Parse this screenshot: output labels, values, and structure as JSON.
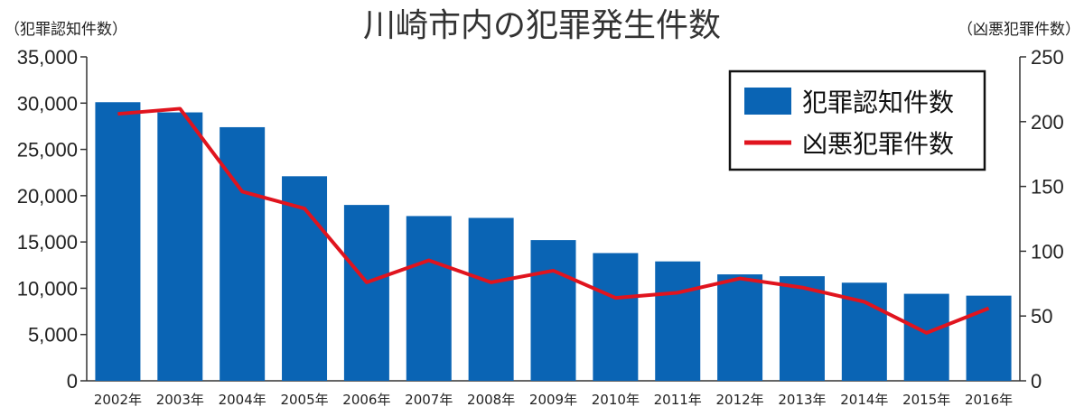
{
  "chart_data": {
    "type": "bar+line",
    "title": "川崎市内の犯罪発生件数",
    "ylabel_left": "（犯罪認知件数）",
    "ylabel_right": "（凶悪犯罪件数）",
    "categories": [
      "2002年",
      "2003年",
      "2004年",
      "2005年",
      "2006年",
      "2007年",
      "2008年",
      "2009年",
      "2010年",
      "2011年",
      "2012年",
      "2013年",
      "2014年",
      "2015年",
      "2016年"
    ],
    "series": [
      {
        "name": "犯罪認知件数",
        "type": "bar",
        "axis": "left",
        "color": "#0a64b4",
        "values": [
          30100,
          29000,
          27400,
          22100,
          19000,
          17800,
          17600,
          15200,
          13800,
          12900,
          11500,
          11300,
          10600,
          9400,
          9200
        ]
      },
      {
        "name": "凶悪犯罪件数",
        "type": "line",
        "axis": "right",
        "color": "#e0141e",
        "values": [
          206,
          210,
          146,
          133,
          76,
          93,
          76,
          85,
          64,
          68,
          79,
          72,
          61,
          37,
          56
        ]
      }
    ],
    "ylim_left": [
      0,
      35000
    ],
    "yticks_left": [
      "0",
      "5,000",
      "10,000",
      "15,000",
      "20,000",
      "25,000",
      "30,000",
      "35,000"
    ],
    "ylim_right": [
      0,
      250
    ],
    "yticks_right": [
      "0",
      "50",
      "100",
      "150",
      "200",
      "250"
    ],
    "grid": false,
    "legend": "top-right"
  }
}
